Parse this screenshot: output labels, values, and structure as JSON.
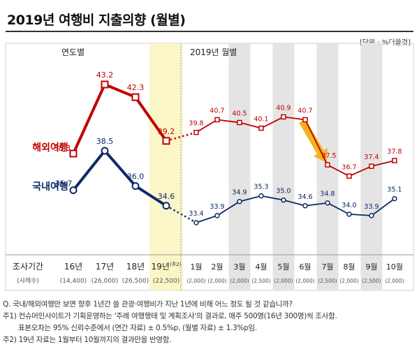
{
  "title": "2019년 여행비 지출의향 (월별)",
  "unit": "[단위 : %더쓸것]",
  "chart_data": {
    "type": "line",
    "panels": [
      "연도별",
      "2019년 월별"
    ],
    "row_label": "조사기간",
    "row_sublabel": "(사례수)",
    "categories": [
      "16년",
      "17년",
      "18년",
      "19년",
      "1월",
      "2월",
      "3월",
      "4월",
      "5월",
      "6월",
      "7월",
      "8월",
      "9월",
      "10월"
    ],
    "footnote_mark": "(주2)",
    "sample_sizes": [
      "(14,400)",
      "(26,000)",
      "(26,500)",
      "(22,500)",
      "(2,000)",
      "(2,000)",
      "(2,000)",
      "(2,500)",
      "(2,000)",
      "(2,000)",
      "(2,500)",
      "(2,000)",
      "(2,500)",
      "(2,000)"
    ],
    "series": [
      {
        "name": "해외여행",
        "color": "#c00000",
        "values": [
          38.3,
          43.2,
          42.3,
          39.2,
          39.8,
          40.7,
          40.5,
          40.1,
          40.9,
          40.7,
          37.5,
          36.7,
          37.4,
          37.8
        ]
      },
      {
        "name": "국내여행",
        "color": "#0d2a66",
        "values": [
          35.7,
          38.5,
          36.0,
          34.6,
          33.4,
          33.9,
          34.9,
          35.3,
          35.0,
          34.6,
          34.8,
          34.0,
          33.9,
          35.1
        ]
      }
    ],
    "shaded_categories": [
      "3월",
      "5월",
      "7월",
      "9월"
    ],
    "highlighted_category": "19년",
    "arrow": {
      "from": "6월",
      "to": "7월",
      "series": "해외여행"
    }
  },
  "notes": [
    "Q. 국내/해외여행만 보면 향후 1년간 쓸 관광·여행비가 지난 1년에 비해 어느 정도 될 것 같습니까?",
    "주1) 컨슈머인사이트가 기획운영하는 '주례 여행행태 및 계획조사'의 결과로, 매주 500명(16년 300명)씩 조사함.",
    "표본오차는 95% 신뢰수준에서 (연간 자료) ± 0.5%p, (월별 자료) ± 1.3%p임.",
    "주2) 19년 자료는 1월부터 10월까지의 결과만을 반영함."
  ]
}
